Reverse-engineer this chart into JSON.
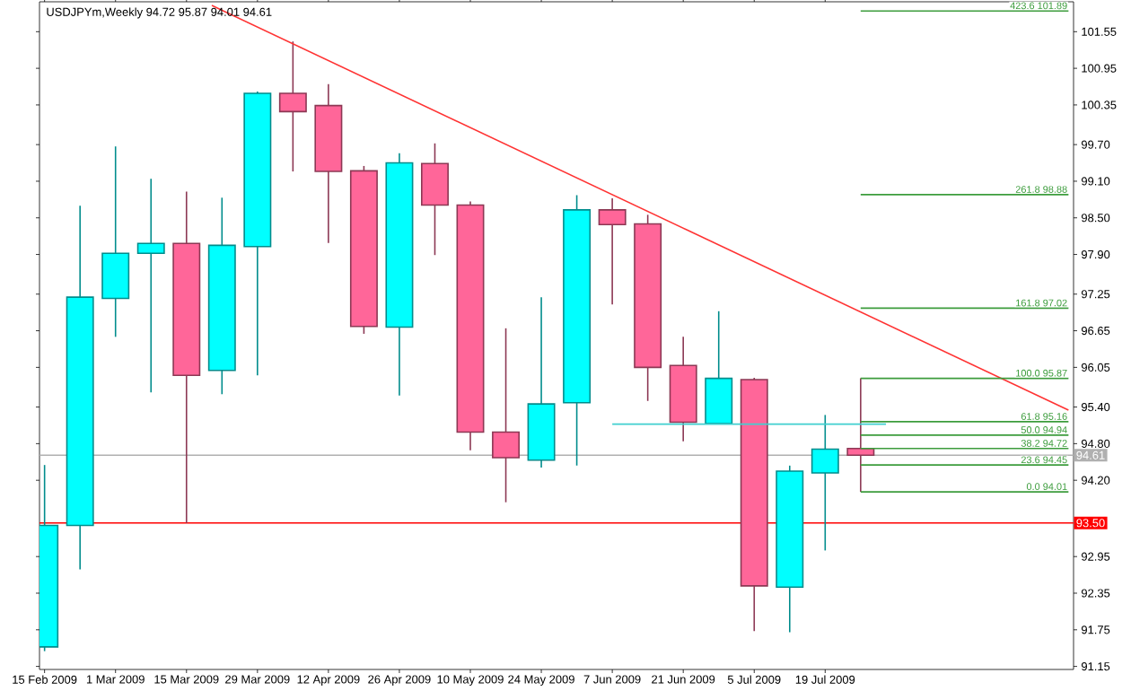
{
  "chart_data": {
    "type": "candlestick",
    "title": "USDJPYm,Weekly  94.72 95.87 94.01 94.61",
    "xlim": [
      "2009-02-14",
      "2009-09-06"
    ],
    "xticks": [
      {
        "value": "2009-02-15",
        "label": "15 Feb 2009"
      },
      {
        "value": "2009-03-01",
        "label": "1 Mar 2009"
      },
      {
        "value": "2009-03-15",
        "label": "15 Mar 2009"
      },
      {
        "value": "2009-03-29",
        "label": "29 Mar 2009"
      },
      {
        "value": "2009-04-12",
        "label": "12 Apr 2009"
      },
      {
        "value": "2009-04-26",
        "label": "26 Apr 2009"
      },
      {
        "value": "2009-05-10",
        "label": "10 May 2009"
      },
      {
        "value": "2009-05-24",
        "label": "24 May 2009"
      },
      {
        "value": "2009-06-07",
        "label": "7 Jun 2009"
      },
      {
        "value": "2009-06-21",
        "label": "21 Jun 2009"
      },
      {
        "value": "2009-07-05",
        "label": "5 Jul 2009"
      },
      {
        "value": "2009-07-19",
        "label": "19 Jul 2009"
      }
    ],
    "ylim": [
      91.1,
      102.04
    ],
    "yticks": [
      {
        "value": 101.55,
        "label": "101.55"
      },
      {
        "value": 100.95,
        "label": "100.95"
      },
      {
        "value": 100.35,
        "label": "100.35"
      },
      {
        "value": 99.7,
        "label": "99.70"
      },
      {
        "value": 99.1,
        "label": "99.10"
      },
      {
        "value": 98.5,
        "label": "98.50"
      },
      {
        "value": 97.9,
        "label": "97.90"
      },
      {
        "value": 97.25,
        "label": "97.25"
      },
      {
        "value": 96.65,
        "label": "96.65"
      },
      {
        "value": 96.05,
        "label": "96.05"
      },
      {
        "value": 95.4,
        "label": "95.40"
      },
      {
        "value": 94.8,
        "label": "94.80"
      },
      {
        "value": 94.2,
        "label": "94.20"
      },
      {
        "value": 92.95,
        "label": "92.95"
      },
      {
        "value": 92.35,
        "label": "92.35"
      },
      {
        "value": 91.75,
        "label": "91.75"
      },
      {
        "value": 91.15,
        "label": "91.15"
      }
    ],
    "series": [
      {
        "type": "candlestick",
        "x": [
          "2009-02-15",
          "2009-02-22",
          "2009-03-01",
          "2009-03-08",
          "2009-03-15",
          "2009-03-22",
          "2009-03-29",
          "2009-04-05",
          "2009-04-12",
          "2009-04-19",
          "2009-04-26",
          "2009-05-03",
          "2009-05-10",
          "2009-05-17",
          "2009-05-24",
          "2009-05-31",
          "2009-06-07",
          "2009-06-14",
          "2009-06-21",
          "2009-06-28",
          "2009-07-05",
          "2009-07-12",
          "2009-07-19",
          "2009-07-26"
        ],
        "ohlc": [
          [
            91.47,
            94.45,
            91.4,
            93.46
          ],
          [
            93.46,
            98.7,
            92.74,
            97.2
          ],
          [
            97.18,
            99.67,
            96.55,
            97.92
          ],
          [
            97.92,
            99.14,
            95.64,
            98.08
          ],
          [
            98.08,
            98.93,
            93.5,
            95.92
          ],
          [
            96.0,
            98.83,
            95.61,
            98.05
          ],
          [
            98.03,
            100.57,
            95.92,
            100.54
          ],
          [
            100.54,
            101.39,
            99.26,
            100.24
          ],
          [
            100.34,
            100.69,
            98.09,
            99.26
          ],
          [
            99.27,
            99.35,
            96.6,
            96.72
          ],
          [
            96.71,
            99.56,
            95.59,
            99.4
          ],
          [
            99.39,
            99.72,
            97.89,
            98.71
          ],
          [
            98.71,
            98.77,
            94.69,
            94.99
          ],
          [
            94.99,
            96.69,
            93.84,
            94.57
          ],
          [
            94.53,
            97.2,
            94.41,
            95.45
          ],
          [
            95.47,
            98.87,
            94.44,
            98.63
          ],
          [
            98.63,
            98.82,
            97.08,
            98.39
          ],
          [
            98.4,
            98.55,
            95.5,
            96.05
          ],
          [
            96.08,
            96.55,
            94.84,
            95.15
          ],
          [
            95.13,
            96.97,
            95.12,
            95.87
          ],
          [
            95.85,
            95.88,
            91.73,
            92.47
          ],
          [
            92.45,
            94.44,
            91.71,
            94.35
          ],
          [
            94.32,
            95.27,
            93.05,
            94.71
          ],
          [
            94.72,
            95.87,
            94.01,
            94.61
          ]
        ],
        "colors": [
          "#00ffff",
          "#00ffff",
          "#00ffff",
          "#00ffff",
          "#ff6699",
          "#00ffff",
          "#00ffff",
          "#ff6699",
          "#ff6699",
          "#ff6699",
          "#00ffff",
          "#ff6699",
          "#ff6699",
          "#ff6699",
          "#00ffff",
          "#00ffff",
          "#ff6699",
          "#ff6699",
          "#ff6699",
          "#00ffff",
          "#ff6699",
          "#00ffff",
          "#00ffff",
          "#ff6699"
        ]
      },
      {
        "type": "line",
        "color": "#ff3333",
        "x": [
          "2009-03-20",
          "2009-09-05"
        ],
        "values": [
          101.98,
          95.35
        ]
      },
      {
        "type": "line",
        "color": "#40d0d0",
        "x": [
          "2009-06-07",
          "2009-07-31"
        ],
        "values": [
          95.12,
          95.12
        ]
      },
      {
        "type": "line",
        "color": "#3c9c3c",
        "name": "423.6  101.89",
        "x": [
          "2009-07-26",
          "2009-09-05"
        ],
        "values": [
          101.89,
          101.89
        ]
      },
      {
        "type": "line",
        "color": "#3c9c3c",
        "name": "261.8  98.88",
        "x": [
          "2009-07-26",
          "2009-09-05"
        ],
        "values": [
          98.88,
          98.88
        ]
      },
      {
        "type": "line",
        "color": "#3c9c3c",
        "name": "161.8  97.02",
        "x": [
          "2009-07-26",
          "2009-09-05"
        ],
        "values": [
          97.02,
          97.02
        ]
      },
      {
        "type": "line",
        "color": "#3c9c3c",
        "name": "100.0  95.87",
        "x": [
          "2009-07-26",
          "2009-09-05"
        ],
        "values": [
          95.87,
          95.87
        ]
      },
      {
        "type": "line",
        "color": "#3c9c3c",
        "name": "61.8  95.16",
        "x": [
          "2009-07-26",
          "2009-09-05"
        ],
        "values": [
          95.16,
          95.16
        ]
      },
      {
        "type": "line",
        "color": "#3c9c3c",
        "name": "50.0  94.94",
        "x": [
          "2009-07-26",
          "2009-09-05"
        ],
        "values": [
          94.94,
          94.94
        ]
      },
      {
        "type": "line",
        "color": "#3c9c3c",
        "name": "38.2  94.72",
        "x": [
          "2009-07-26",
          "2009-09-05"
        ],
        "values": [
          94.72,
          94.72
        ]
      },
      {
        "type": "line",
        "color": "#3c9c3c",
        "name": "23.6  94.45",
        "x": [
          "2009-07-26",
          "2009-09-05"
        ],
        "values": [
          94.45,
          94.45
        ]
      },
      {
        "type": "line",
        "color": "#3c9c3c",
        "name": "0.0  94.01",
        "x": [
          "2009-07-26",
          "2009-09-05"
        ],
        "values": [
          94.01,
          94.01
        ]
      }
    ],
    "ref_lines": [
      {
        "axis": "y",
        "value": 93.5,
        "label": "93.50",
        "color": "#ff0000"
      },
      {
        "axis": "y",
        "value": 94.61,
        "label": "94.61",
        "color": "#b0b0b0"
      }
    ]
  }
}
